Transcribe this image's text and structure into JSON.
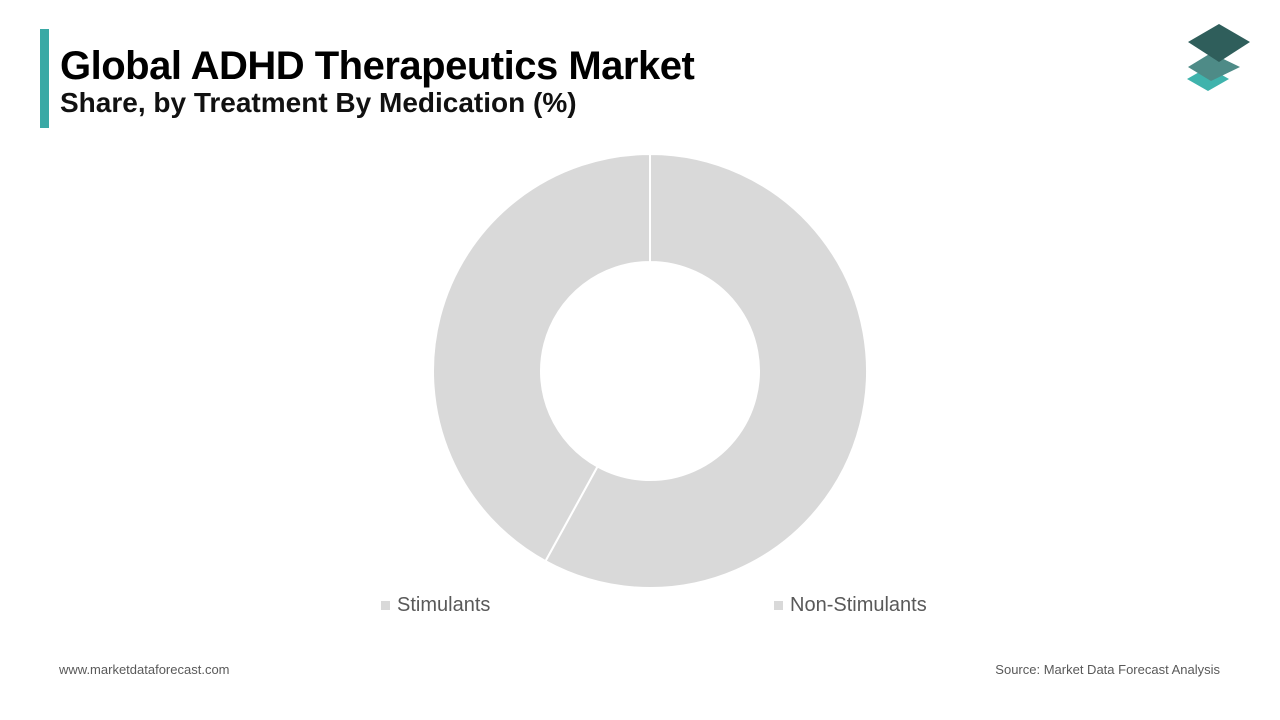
{
  "header": {
    "title": "Global ADHD Therapeutics Market",
    "subtitle": "Share, by Treatment By Medication (%)"
  },
  "colors": {
    "accent": "#3aa9a5",
    "slice": "#d9d9d9",
    "slice_border": "#ffffff",
    "logo_top": "#2f5e5b",
    "logo_mid": "#4e8b87",
    "logo_bottom": "#3fb3ac"
  },
  "chart_data": {
    "type": "pie",
    "categories": [
      "Stimulants",
      "Non-Stimulants"
    ],
    "values": [
      58,
      42
    ],
    "title": "",
    "legend_position": "bottom"
  },
  "logo": {
    "icon": "stacked-layers-icon"
  },
  "footer": {
    "website": "www.marketdataforecast.com",
    "source": "Source: Market Data Forecast Analysis"
  }
}
